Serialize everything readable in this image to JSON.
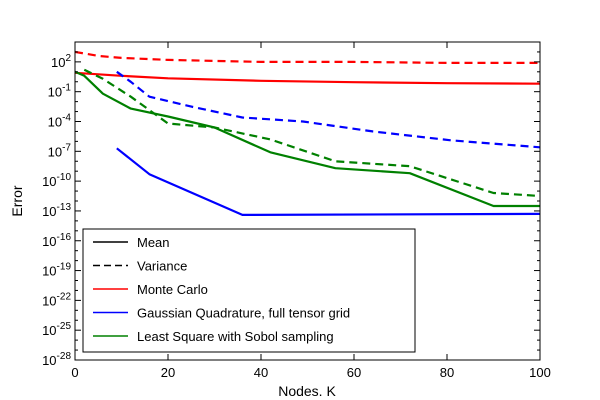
{
  "chart_data": {
    "type": "line",
    "title": "",
    "xlabel": "Nodes. K",
    "ylabel": "Error",
    "xlim": [
      0,
      100
    ],
    "ylim_log10": [
      -28,
      4
    ],
    "yscale": "log",
    "x_ticks": [
      0,
      20,
      40,
      60,
      80,
      100
    ],
    "x_tick_labels": [
      "0",
      "20",
      "40",
      "60",
      "80",
      "100"
    ],
    "y_ticks_log10": [
      2,
      -1,
      -4,
      -7,
      -10,
      -13,
      -16,
      -19,
      -22,
      -25,
      -28
    ],
    "y_tick_labels": [
      {
        "base": "10",
        "exp": "2"
      },
      {
        "base": "10",
        "exp": "-1"
      },
      {
        "base": "10",
        "exp": "-4"
      },
      {
        "base": "10",
        "exp": "-7"
      },
      {
        "base": "10",
        "exp": "-10"
      },
      {
        "base": "10",
        "exp": "-13"
      },
      {
        "base": "10",
        "exp": "-16"
      },
      {
        "base": "10",
        "exp": "-19"
      },
      {
        "base": "10",
        "exp": "-22"
      },
      {
        "base": "10",
        "exp": "-25"
      },
      {
        "base": "10",
        "exp": "-28"
      }
    ],
    "grid": false,
    "legend_position": "bottom-left",
    "legend": [
      {
        "label": "Mean",
        "color": "#000000",
        "style": "solid"
      },
      {
        "label": "Variance",
        "color": "#000000",
        "style": "dashed"
      },
      {
        "label": "Monte Carlo",
        "color": "#ff0000",
        "style": "solid"
      },
      {
        "label": "Gaussian Quadrature, full tensor grid",
        "color": "#0000ff",
        "style": "solid"
      },
      {
        "label": "Least Square with Sobol sampling",
        "color": "#008000",
        "style": "solid"
      }
    ],
    "series": [
      {
        "method": "Monte Carlo",
        "stat": "Mean",
        "color": "#ff0000",
        "style": "solid",
        "x": [
          0,
          10,
          20,
          40,
          60,
          80,
          100
        ],
        "log10_y": [
          0.9,
          0.6,
          0.35,
          0.1,
          -0.05,
          -0.15,
          -0.2
        ]
      },
      {
        "method": "Monte Carlo",
        "stat": "Variance",
        "color": "#ff0000",
        "style": "dashed",
        "x": [
          0,
          5,
          10,
          20,
          40,
          60,
          80,
          100
        ],
        "log10_y": [
          3.0,
          2.6,
          2.4,
          2.2,
          2.0,
          2.0,
          1.9,
          1.9
        ]
      },
      {
        "method": "Gaussian Quadrature, full tensor grid",
        "stat": "Mean",
        "color": "#0000ff",
        "style": "solid",
        "x": [
          9,
          16,
          36,
          100
        ],
        "log10_y": [
          -6.7,
          -9.3,
          -13.4,
          -13.3
        ]
      },
      {
        "method": "Gaussian Quadrature, full tensor grid",
        "stat": "Variance",
        "color": "#0000ff",
        "style": "dashed",
        "x": [
          9,
          12,
          16,
          25,
          36,
          49,
          64,
          81,
          100
        ],
        "log10_y": [
          1.0,
          0.0,
          -1.5,
          -2.5,
          -3.6,
          -4.0,
          -5.0,
          -5.9,
          -6.6
        ]
      },
      {
        "method": "Least Square with Sobol sampling",
        "stat": "Mean",
        "color": "#008000",
        "style": "solid",
        "x": [
          0,
          2,
          6,
          12,
          20,
          30,
          42,
          56,
          72,
          90,
          100
        ],
        "log10_y": [
          1.0,
          0.6,
          -1.2,
          -2.7,
          -3.5,
          -4.6,
          -7.1,
          -8.7,
          -9.2,
          -12.5,
          -12.5
        ]
      },
      {
        "method": "Least Square with Sobol sampling",
        "stat": "Variance",
        "color": "#008000",
        "style": "dashed",
        "x": [
          2,
          6,
          12,
          20,
          30,
          42,
          56,
          72,
          90,
          100
        ],
        "log10_y": [
          1.2,
          0.3,
          -1.5,
          -4.2,
          -4.6,
          -5.8,
          -8.0,
          -8.5,
          -11.2,
          -11.5
        ]
      }
    ]
  }
}
